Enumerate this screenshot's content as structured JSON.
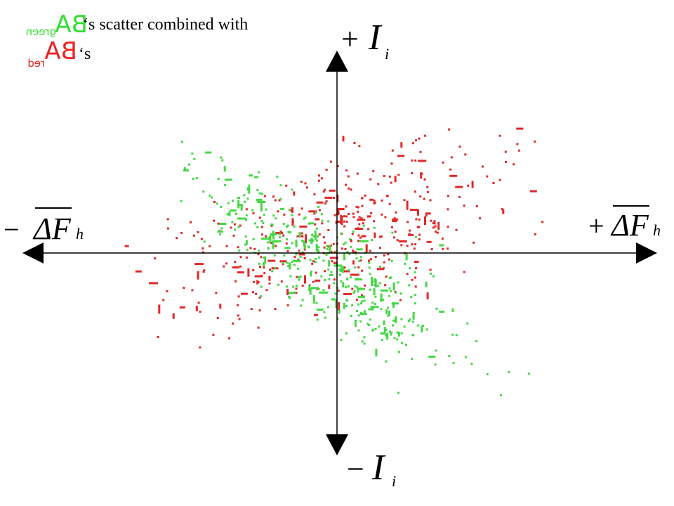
{
  "title": {
    "line1": {
      "symbol": "BA",
      "subscript": "green",
      "text": "‘s scatter combined with"
    },
    "line2": {
      "symbol": "BA",
      "subscript": "red",
      "text": "‘s"
    }
  },
  "axes": {
    "top": {
      "sign": "+",
      "symbol": "I",
      "subscript": "i"
    },
    "bottom": {
      "sign": "−",
      "symbol": "I",
      "subscript": "i"
    },
    "left": {
      "sign": "−",
      "symbol": "ΔF",
      "subscript": "h"
    },
    "right": {
      "sign": "+",
      "symbol": "ΔF",
      "subscript": "h"
    }
  }
}
